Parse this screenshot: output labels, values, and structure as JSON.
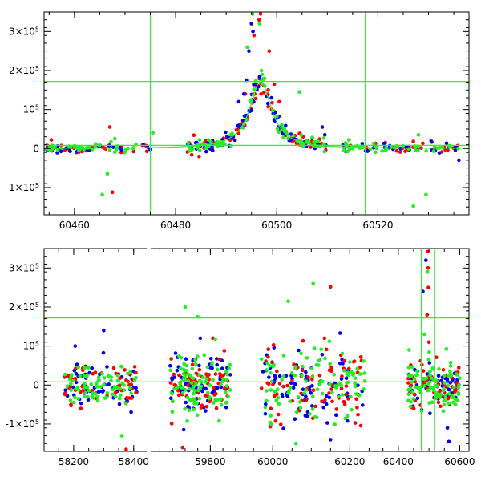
{
  "chart_data": [
    {
      "type": "scatter",
      "title": "",
      "xlabel": "",
      "ylabel": "",
      "xlim": [
        60454,
        60538
      ],
      "ylim": [
        -170000,
        350000
      ],
      "grid": false,
      "x_ticks": [
        {
          "value": 60460,
          "label": "60460"
        },
        {
          "value": 60480,
          "label": "60480"
        },
        {
          "value": 60500,
          "label": "60500"
        },
        {
          "value": 60520,
          "label": "60520"
        }
      ],
      "y_ticks": [
        {
          "value": 300000,
          "mant": "3×10",
          "exp": "5"
        },
        {
          "value": 200000,
          "mant": "2×10",
          "exp": "5"
        },
        {
          "value": 100000,
          "mant": "10",
          "exp": "5"
        },
        {
          "value": 0,
          "mant": "0",
          "exp": ""
        },
        {
          "value": -100000,
          "mant": "-1×10",
          "exp": "5"
        }
      ],
      "vlines": [
        60475.0,
        60517.5
      ],
      "hlines": [
        172000,
        8000
      ],
      "model": {
        "peak_x": 60496.8,
        "peak_y": 172000,
        "width": 2.6,
        "base": 0
      },
      "series": [
        {
          "color": "#ff0000",
          "seed": 11,
          "clusters": [
            {
              "x0": 60454,
              "x1": 60475,
              "n": 34,
              "spread": 6000
            },
            {
              "x0": 60482,
              "x1": 60510,
              "n": 90,
              "spread": 9000
            },
            {
              "x0": 60513,
              "x1": 60536,
              "n": 30,
              "spread": 6000
            }
          ],
          "points": [
            [
              60467,
              55000
            ],
            [
              60467.5,
              -112000
            ],
            [
              60496.5,
              330000
            ],
            [
              60496.8,
              345000
            ],
            [
              60498.5,
              250000
            ],
            [
              60495.5,
              290000
            ],
            [
              60499.5,
              165000
            ],
            [
              60500.5,
              120000
            ],
            [
              60493.8,
              140000
            ],
            [
              60530.5,
              20000
            ],
            [
              60527,
              18000
            ]
          ]
        },
        {
          "color": "#0000ee",
          "seed": 23,
          "clusters": [
            {
              "x0": 60454,
              "x1": 60475,
              "n": 28,
              "spread": 6000
            },
            {
              "x0": 60482,
              "x1": 60510,
              "n": 80,
              "spread": 9000
            },
            {
              "x0": 60513,
              "x1": 60536,
              "n": 30,
              "spread": 6000
            }
          ],
          "points": [
            [
              60494,
              175000
            ],
            [
              60494.5,
              250000
            ],
            [
              60495,
              320000
            ],
            [
              60495.3,
              300000
            ],
            [
              60493.5,
              140000
            ],
            [
              60492.5,
              120000
            ],
            [
              60509,
              55000
            ],
            [
              60509.5,
              35000
            ],
            [
              60536,
              -30000
            ],
            [
              60513.5,
              12000
            ]
          ]
        },
        {
          "color": "#22ee22",
          "seed": 37,
          "clusters": [
            {
              "x0": 60454,
              "x1": 60475,
              "n": 40,
              "spread": 6000
            },
            {
              "x0": 60482,
              "x1": 60510,
              "n": 85,
              "spread": 9000
            },
            {
              "x0": 60513,
              "x1": 60536,
              "n": 45,
              "spread": 6000
            }
          ],
          "points": [
            [
              60465.5,
              -118000
            ],
            [
              60466.5,
              -65000
            ],
            [
              60475.5,
              40000
            ],
            [
              60494.2,
              260000
            ],
            [
              60495.2,
              345000
            ],
            [
              60496.6,
              320000
            ],
            [
              60504.5,
              145000
            ],
            [
              60527,
              -148000
            ],
            [
              60529.5,
              -118000
            ],
            [
              60528,
              35000
            ],
            [
              60468,
              25000
            ]
          ]
        }
      ]
    },
    {
      "type": "scatter",
      "title": "",
      "xlabel": "",
      "ylabel": "",
      "x_segments": [
        {
          "range": [
            58120,
            58430
          ]
        },
        {
          "range": [
            59570,
            59910
          ]
        },
        {
          "range": [
            59910,
            60270
          ]
        },
        {
          "range": [
            60330,
            60625
          ]
        }
      ],
      "ylim": [
        -170000,
        350000
      ],
      "grid": false,
      "x_ticks": [
        {
          "value": 58200,
          "label": "58200"
        },
        {
          "value": 58400,
          "label": "58400"
        },
        {
          "value": 59800,
          "label": "59800"
        },
        {
          "value": 60000,
          "label": "60000"
        },
        {
          "value": 60200,
          "label": "60200"
        },
        {
          "value": 60400,
          "label": "60400"
        },
        {
          "value": 60600,
          "label": "60600"
        }
      ],
      "y_ticks": [
        {
          "value": 300000,
          "mant": "3×10",
          "exp": "5"
        },
        {
          "value": 200000,
          "mant": "2×10",
          "exp": "5"
        },
        {
          "value": 100000,
          "mant": "10",
          "exp": "5"
        },
        {
          "value": 0,
          "mant": "0",
          "exp": ""
        },
        {
          "value": -100000,
          "mant": "-1×10",
          "exp": "5"
        }
      ],
      "vlines": [
        60475.0,
        60517.5
      ],
      "hlines": [
        172000,
        8000
      ],
      "series": [
        {
          "color": "#0000ee",
          "seed": 51,
          "clusters": [
            {
              "x0": 58170,
              "x1": 58410,
              "n": 55,
              "spread": 28000
            },
            {
              "x0": 59640,
              "x1": 59880,
              "n": 70,
              "spread": 36000
            },
            {
              "x0": 59970,
              "x1": 60240,
              "n": 80,
              "spread": 48000
            },
            {
              "x0": 60430,
              "x1": 60600,
              "n": 55,
              "spread": 30000
            }
          ],
          "points": [
            [
              58300,
              140000
            ],
            [
              58205,
              100000
            ],
            [
              59760,
              120000
            ],
            [
              60150,
              -140000
            ],
            [
              60480,
              240000
            ],
            [
              60490,
              320000
            ],
            [
              60560,
              -110000
            ],
            [
              60565,
              -145000
            ]
          ]
        },
        {
          "color": "#ff0000",
          "seed": 67,
          "clusters": [
            {
              "x0": 58170,
              "x1": 58410,
              "n": 55,
              "spread": 26000
            },
            {
              "x0": 59640,
              "x1": 59880,
              "n": 65,
              "spread": 34000
            },
            {
              "x0": 59970,
              "x1": 60240,
              "n": 80,
              "spread": 45000
            },
            {
              "x0": 60430,
              "x1": 60600,
              "n": 55,
              "spread": 28000
            }
          ],
          "points": [
            [
              58375,
              -165000
            ],
            [
              59690,
              -160000
            ],
            [
              60150,
              252000
            ],
            [
              60496,
              342000
            ],
            [
              60497,
              300000
            ],
            [
              60498,
              250000
            ],
            [
              60494,
              180000
            ],
            [
              60500,
              110000
            ],
            [
              59810,
              120000
            ]
          ]
        },
        {
          "color": "#22ee22",
          "seed": 79,
          "clusters": [
            {
              "x0": 58170,
              "x1": 58410,
              "n": 75,
              "spread": 22000
            },
            {
              "x0": 59640,
              "x1": 59880,
              "n": 95,
              "spread": 38000
            },
            {
              "x0": 59970,
              "x1": 60240,
              "n": 100,
              "spread": 48000
            },
            {
              "x0": 60430,
              "x1": 60600,
              "n": 95,
              "spread": 32000
            }
          ],
          "points": [
            [
              59700,
              200000
            ],
            [
              59750,
              175000
            ],
            [
              60040,
              215000
            ],
            [
              60105,
              260000
            ],
            [
              58360,
              -130000
            ],
            [
              60060,
              -150000
            ],
            [
              60495,
              290000
            ],
            [
              60485,
              130000
            ],
            [
              60435,
              90000
            ]
          ]
        }
      ]
    }
  ]
}
